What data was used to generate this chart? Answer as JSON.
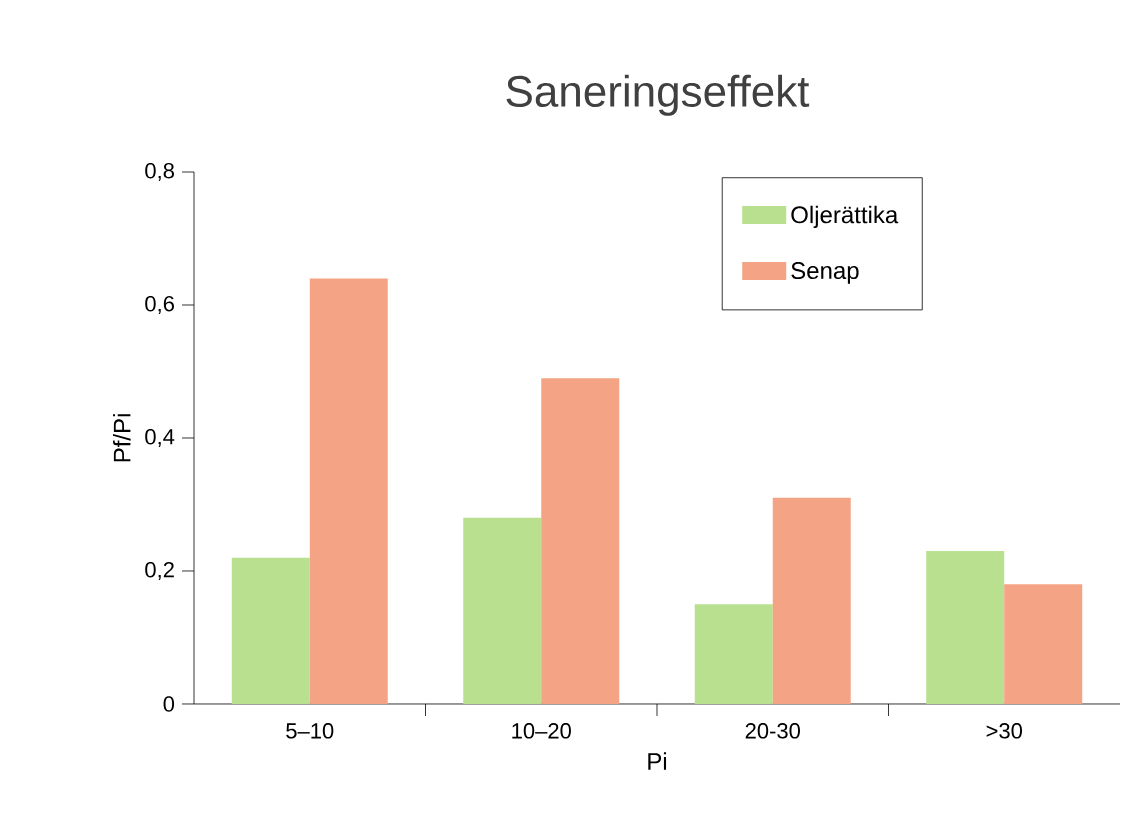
{
  "chart_data": {
    "type": "bar",
    "title": "Saneringseffekt",
    "xlabel": "Pi",
    "ylabel": "Pf/Pi",
    "categories": [
      "5–10",
      "10–20",
      "20-30",
      ">30"
    ],
    "series": [
      {
        "name": "Oljerättika",
        "color": "#b8e08e",
        "values": [
          0.22,
          0.28,
          0.15,
          0.23
        ]
      },
      {
        "name": "Senap",
        "color": "#f4a384",
        "values": [
          0.64,
          0.49,
          0.31,
          0.18
        ]
      }
    ],
    "ylim": [
      0,
      0.8
    ],
    "yticks": [
      0,
      {
        "value": 0.2,
        "label": "0,2"
      },
      {
        "value": 0.4,
        "label": "0,4"
      },
      {
        "value": 0.6,
        "label": "0,6"
      },
      {
        "value": 0.8,
        "label": "0,8"
      }
    ],
    "grid": false,
    "legend": "top right"
  }
}
